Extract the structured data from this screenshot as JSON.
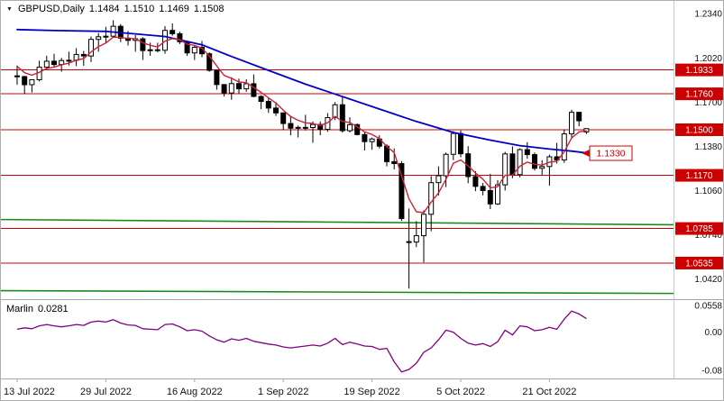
{
  "window": {
    "symbol_timeframe": "GBPUSD,Daily",
    "ohlc": {
      "open": "1.1484",
      "high": "1.1510",
      "low": "1.1469",
      "close": "1.1508"
    }
  },
  "colors": {
    "background": "#ffffff",
    "candle_up": "#ffffff",
    "candle_down": "#000000",
    "candle_outline": "#000000",
    "ma_fast": "#cc2233",
    "ma_slow": "#0000c8",
    "level_line": "#cc0000",
    "level_badge": "#cc0000",
    "level_badge_text": "#ffffff",
    "trend_line": "#1a8c1a",
    "indicator_line": "#800080",
    "axis_text": "#111111",
    "separator": "#a6a6a6",
    "callout_text": "#cc0000"
  },
  "chart_data": {
    "type": "candlestick",
    "title": "GBPUSD, Daily",
    "symbol": "GBPUSD",
    "timeframe": "Daily",
    "price_range": {
      "min": 1.028,
      "max": 1.24
    },
    "dates": [
      "2022-07-13",
      "2022-07-14",
      "2022-07-15",
      "2022-07-18",
      "2022-07-19",
      "2022-07-20",
      "2022-07-21",
      "2022-07-22",
      "2022-07-25",
      "2022-07-26",
      "2022-07-27",
      "2022-07-28",
      "2022-07-29",
      "2022-08-01",
      "2022-08-02",
      "2022-08-03",
      "2022-08-04",
      "2022-08-05",
      "2022-08-08",
      "2022-08-09",
      "2022-08-10",
      "2022-08-11",
      "2022-08-12",
      "2022-08-15",
      "2022-08-16",
      "2022-08-17",
      "2022-08-18",
      "2022-08-19",
      "2022-08-22",
      "2022-08-23",
      "2022-08-24",
      "2022-08-25",
      "2022-08-26",
      "2022-08-29",
      "2022-08-30",
      "2022-08-31",
      "2022-09-01",
      "2022-09-02",
      "2022-09-05",
      "2022-09-06",
      "2022-09-07",
      "2022-09-08",
      "2022-09-09",
      "2022-09-12",
      "2022-09-13",
      "2022-09-14",
      "2022-09-15",
      "2022-09-16",
      "2022-09-19",
      "2022-09-20",
      "2022-09-21",
      "2022-09-22",
      "2022-09-23",
      "2022-09-26",
      "2022-09-27",
      "2022-09-28",
      "2022-09-29",
      "2022-09-30",
      "2022-10-03",
      "2022-10-04",
      "2022-10-05",
      "2022-10-06",
      "2022-10-07",
      "2022-10-10",
      "2022-10-11",
      "2022-10-12",
      "2022-10-13",
      "2022-10-14",
      "2022-10-17",
      "2022-10-18",
      "2022-10-19",
      "2022-10-20",
      "2022-10-21",
      "2022-10-24",
      "2022-10-25",
      "2022-10-26",
      "2022-10-27",
      "2022-10-28"
    ],
    "ohlc": [
      [
        1.189,
        1.1965,
        1.1825,
        1.1885
      ],
      [
        1.1885,
        1.189,
        1.176,
        1.1826
      ],
      [
        1.1826,
        1.1866,
        1.177,
        1.1862
      ],
      [
        1.1862,
        1.2,
        1.185,
        1.1953
      ],
      [
        1.1953,
        1.2036,
        1.1935,
        1.1996
      ],
      [
        1.1996,
        1.205,
        1.1955,
        1.1972
      ],
      [
        1.1972,
        1.202,
        1.192,
        1.2001
      ],
      [
        1.2001,
        1.2065,
        1.1965,
        1.2003
      ],
      [
        1.2003,
        1.209,
        1.196,
        1.2045
      ],
      [
        1.2045,
        1.207,
        1.1963,
        1.2034
      ],
      [
        1.2034,
        1.2175,
        1.199,
        1.2154
      ],
      [
        1.2154,
        1.22,
        1.2065,
        1.2173
      ],
      [
        1.2173,
        1.2245,
        1.213,
        1.2177
      ],
      [
        1.2177,
        1.2293,
        1.217,
        1.2249
      ],
      [
        1.2249,
        1.2265,
        1.2135,
        1.2163
      ],
      [
        1.2163,
        1.2215,
        1.211,
        1.2147
      ],
      [
        1.2147,
        1.2185,
        1.2065,
        1.2158
      ],
      [
        1.2158,
        1.217,
        1.2005,
        1.2073
      ],
      [
        1.2073,
        1.213,
        1.2035,
        1.2079
      ],
      [
        1.2079,
        1.213,
        1.206,
        1.2075
      ],
      [
        1.2075,
        1.225,
        1.205,
        1.2219
      ],
      [
        1.2219,
        1.227,
        1.218,
        1.2195
      ],
      [
        1.2195,
        1.221,
        1.212,
        1.2137
      ],
      [
        1.2137,
        1.2145,
        1.2035,
        1.2056
      ],
      [
        1.2056,
        1.211,
        1.2005,
        1.2097
      ],
      [
        1.2097,
        1.2142,
        1.2025,
        1.205
      ],
      [
        1.205,
        1.206,
        1.192,
        1.193
      ],
      [
        1.193,
        1.1935,
        1.179,
        1.1827
      ],
      [
        1.1827,
        1.183,
        1.174,
        1.1766
      ],
      [
        1.1766,
        1.188,
        1.1717,
        1.1834
      ],
      [
        1.1834,
        1.187,
        1.176,
        1.1796
      ],
      [
        1.1796,
        1.1865,
        1.1775,
        1.1833
      ],
      [
        1.1833,
        1.19,
        1.1735,
        1.1741
      ],
      [
        1.1741,
        1.175,
        1.165,
        1.1705
      ],
      [
        1.1705,
        1.1735,
        1.1622,
        1.1657
      ],
      [
        1.1657,
        1.17,
        1.16,
        1.1622
      ],
      [
        1.1622,
        1.1625,
        1.1499,
        1.1545
      ],
      [
        1.1545,
        1.16,
        1.146,
        1.1511
      ],
      [
        1.1511,
        1.153,
        1.1444,
        1.1517
      ],
      [
        1.1517,
        1.1608,
        1.1495,
        1.1516
      ],
      [
        1.1516,
        1.156,
        1.1405,
        1.1538
      ],
      [
        1.1538,
        1.156,
        1.146,
        1.1503
      ],
      [
        1.1503,
        1.162,
        1.1485,
        1.1588
      ],
      [
        1.1588,
        1.17,
        1.157,
        1.1681
      ],
      [
        1.1681,
        1.1738,
        1.148,
        1.1493
      ],
      [
        1.1493,
        1.159,
        1.148,
        1.1537
      ],
      [
        1.1537,
        1.1545,
        1.146,
        1.1465
      ],
      [
        1.1465,
        1.148,
        1.135,
        1.1414
      ],
      [
        1.1414,
        1.1443,
        1.1355,
        1.1433
      ],
      [
        1.1433,
        1.146,
        1.1365,
        1.1381
      ],
      [
        1.1381,
        1.1395,
        1.1235,
        1.1269
      ],
      [
        1.1269,
        1.1365,
        1.1213,
        1.1255
      ],
      [
        1.1255,
        1.1273,
        1.084,
        1.0857
      ],
      [
        1.069,
        1.093,
        1.035,
        1.0687
      ],
      [
        1.0687,
        1.0838,
        1.065,
        1.0733
      ],
      [
        1.0733,
        1.0916,
        1.054,
        1.0888
      ],
      [
        1.0888,
        1.1165,
        1.0765,
        1.1117
      ],
      [
        1.1117,
        1.1235,
        1.1025,
        1.1167
      ],
      [
        1.1167,
        1.1335,
        1.1085,
        1.1322
      ],
      [
        1.1322,
        1.149,
        1.128,
        1.1473
      ],
      [
        1.1473,
        1.1495,
        1.13,
        1.1326
      ],
      [
        1.1326,
        1.1381,
        1.1113,
        1.1161
      ],
      [
        1.1161,
        1.12,
        1.1055,
        1.109
      ],
      [
        1.109,
        1.1115,
        1.1025,
        1.106
      ],
      [
        1.106,
        1.118,
        1.0925,
        1.0963
      ],
      [
        1.0963,
        1.1135,
        1.0955,
        1.1101
      ],
      [
        1.1101,
        1.134,
        1.106,
        1.1325
      ],
      [
        1.1325,
        1.138,
        1.115,
        1.1175
      ],
      [
        1.1175,
        1.1365,
        1.1155,
        1.1356
      ],
      [
        1.1356,
        1.141,
        1.129,
        1.132
      ],
      [
        1.132,
        1.1335,
        1.1205,
        1.1221
      ],
      [
        1.1221,
        1.128,
        1.117,
        1.1234
      ],
      [
        1.1234,
        1.132,
        1.1095,
        1.1304
      ],
      [
        1.1304,
        1.1405,
        1.1255,
        1.1281
      ],
      [
        1.1281,
        1.15,
        1.126,
        1.147
      ],
      [
        1.147,
        1.1645,
        1.1435,
        1.1626
      ],
      [
        1.1626,
        1.163,
        1.1525,
        1.1565
      ],
      [
        1.1484,
        1.151,
        1.1469,
        1.1508
      ]
    ],
    "levels": [
      {
        "label": "1.1933",
        "value": 1.1933
      },
      {
        "label": "1.1760",
        "value": 1.176
      },
      {
        "label": "1.1500",
        "value": 1.15
      },
      {
        "label": "1.1170",
        "value": 1.117
      },
      {
        "label": "1.0785",
        "value": 1.0785
      },
      {
        "label": "1.0535",
        "value": 1.0535
      }
    ],
    "price_ticks": [
      {
        "label": "1.2340",
        "value": 1.234
      },
      {
        "label": "1.2020",
        "value": 1.202
      },
      {
        "label": "1.1700",
        "value": 1.17
      },
      {
        "label": "1.1380",
        "value": 1.138
      },
      {
        "label": "1.1060",
        "value": 1.106
      },
      {
        "label": "1.0740",
        "value": 1.074
      },
      {
        "label": "1.0420",
        "value": 1.042
      }
    ],
    "callout": {
      "label": "1.1330",
      "price": 1.133
    },
    "moving_averages": [
      {
        "name": "slow-ma-blue",
        "color_key": "ma_slow",
        "points": [
          [
            0,
            1.2225
          ],
          [
            5,
            1.2218
          ],
          [
            12,
            1.2212
          ],
          [
            20,
            1.2175
          ],
          [
            25,
            1.2115
          ],
          [
            29,
            1.203
          ],
          [
            34,
            1.193
          ],
          [
            39,
            1.183
          ],
          [
            44,
            1.174
          ],
          [
            49,
            1.165
          ],
          [
            54,
            1.156
          ],
          [
            59,
            1.148
          ],
          [
            64,
            1.1425
          ],
          [
            68,
            1.1385
          ],
          [
            72,
            1.136
          ],
          [
            75,
            1.1345
          ],
          [
            77,
            1.1332
          ]
        ]
      },
      {
        "name": "fast-ma-red",
        "color_key": "ma_fast",
        "ema_alpha": 0.35,
        "ema_seed": 1.2
      }
    ],
    "trend_lines": [
      {
        "p_left": 1.085,
        "p_right": 1.0812
      },
      {
        "p_left": 1.0335,
        "p_right": 1.0315
      }
    ],
    "x_ticks": [
      {
        "label": "13 Jul 2022",
        "index": 0
      },
      {
        "label": "29 Jul 2022",
        "index": 12
      },
      {
        "label": "16 Aug 2022",
        "index": 24
      },
      {
        "label": "1 Sep 2022",
        "index": 36
      },
      {
        "label": "19 Sep 2022",
        "index": 48
      },
      {
        "label": "5 Oct 2022",
        "index": 60
      },
      {
        "label": "21 Oct 2022",
        "index": 72
      }
    ]
  },
  "indicator": {
    "name": "Marlin",
    "value_text": "0.0281",
    "range": {
      "min": -0.093,
      "max": 0.065
    },
    "ticks": [
      {
        "label": "0.0558",
        "value": 0.0558
      },
      {
        "label": "0.00",
        "value": 0.0
      },
      {
        "label": "-0.08",
        "value": -0.08
      }
    ],
    "values": [
      0.006,
      0.009,
      0.007,
      0.013,
      0.016,
      0.013,
      0.011,
      0.013,
      0.016,
      0.014,
      0.021,
      0.023,
      0.021,
      0.026,
      0.019,
      0.015,
      0.014,
      0.007,
      0.006,
      0.005,
      0.016,
      0.017,
      0.011,
      0.003,
      0.005,
      0.002,
      -0.008,
      -0.016,
      -0.021,
      -0.014,
      -0.017,
      -0.013,
      -0.019,
      -0.022,
      -0.025,
      -0.027,
      -0.031,
      -0.033,
      -0.031,
      -0.029,
      -0.027,
      -0.029,
      -0.023,
      -0.013,
      -0.026,
      -0.021,
      -0.025,
      -0.029,
      -0.03,
      -0.036,
      -0.034,
      -0.062,
      -0.083,
      -0.078,
      -0.065,
      -0.042,
      -0.033,
      -0.016,
      0.004,
      0.0,
      -0.013,
      -0.023,
      -0.027,
      -0.024,
      -0.03,
      -0.02,
      0.004,
      -0.006,
      0.013,
      0.011,
      0.003,
      0.005,
      0.01,
      0.006,
      0.027,
      0.044,
      0.038,
      0.0281
    ]
  }
}
